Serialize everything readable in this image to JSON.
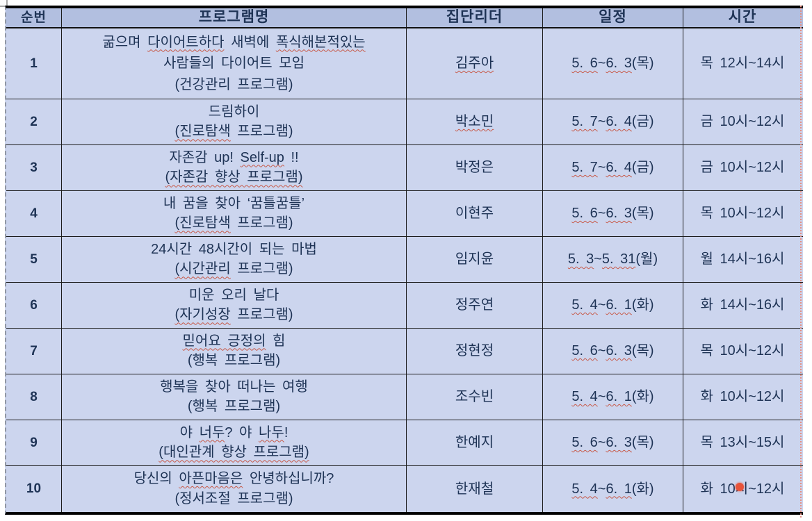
{
  "colors": {
    "header_bg": "#b2bfe0",
    "body_bg": "#ccd5ee",
    "text_color": "#1e3355",
    "misspell_color": "#c75a49",
    "pointer_color": "#e8533a",
    "margin_guide_color": "#e49084"
  },
  "table": {
    "columns": [
      {
        "id": "no",
        "label": "순번"
      },
      {
        "id": "program",
        "label": "프로그램명"
      },
      {
        "id": "leader",
        "label": "집단리더"
      },
      {
        "id": "schedule",
        "label": "일정"
      },
      {
        "id": "time",
        "label": "시간"
      }
    ],
    "rows": [
      {
        "no": "1",
        "program_lines": [
          [
            {
              "text": "굶으며 "
            },
            {
              "text": "다이어트하다",
              "misspell": true
            },
            {
              "text": " 새벽에 "
            },
            {
              "text": "폭식해본적있는",
              "misspell": true
            }
          ],
          [
            {
              "text": "사람들의 다이어트 모임"
            }
          ],
          [
            {
              "text": "(건강관리 프로그램)"
            }
          ]
        ],
        "leader": [
          {
            "text": "김주아",
            "misspell": true
          }
        ],
        "schedule": [
          {
            "text": "5. 6",
            "misspell": true
          },
          {
            "text": " ~ "
          },
          {
            "text": "6. 3",
            "misspell": true
          },
          {
            "text": " (목)"
          }
        ],
        "time": "목 12시~14시"
      },
      {
        "no": "2",
        "program_lines": [
          [
            {
              "text": "드림하이"
            }
          ],
          [
            {
              "text": "(진로탐색",
              "misspell": true
            },
            {
              "text": " 프로그램)"
            }
          ]
        ],
        "leader": [
          {
            "text": "박소민",
            "misspell": true
          }
        ],
        "schedule": [
          {
            "text": "5. 7",
            "misspell": true
          },
          {
            "text": " ~ "
          },
          {
            "text": "6. 4",
            "misspell": true
          },
          {
            "text": " (금)"
          }
        ],
        "time": "금 10시~12시"
      },
      {
        "no": "3",
        "program_lines": [
          [
            {
              "text": "자존감 up! "
            },
            {
              "text": "Self-up",
              "misspell": true
            },
            {
              "text": " !!"
            }
          ],
          [
            {
              "text": "(자존감 향상 프로그램)",
              "misspell": true
            }
          ]
        ],
        "leader": [
          {
            "text": "박정은"
          }
        ],
        "schedule": [
          {
            "text": "5. 7",
            "misspell": true
          },
          {
            "text": " ~ "
          },
          {
            "text": "6. 4",
            "misspell": true
          },
          {
            "text": " (금)"
          }
        ],
        "time": "금 10시~12시"
      },
      {
        "no": "4",
        "program_lines": [
          [
            {
              "text": "내 꿈을 찾아 ‘꿈틀꿈틀’"
            }
          ],
          [
            {
              "text": "(진로탐색",
              "misspell": true
            },
            {
              "text": " 프로그램)"
            }
          ]
        ],
        "leader": [
          {
            "text": "이현주"
          }
        ],
        "schedule": [
          {
            "text": "5. 6",
            "misspell": true
          },
          {
            "text": " ~ "
          },
          {
            "text": "6. 3",
            "misspell": true
          },
          {
            "text": " (목)"
          }
        ],
        "time": "목 10시~12시"
      },
      {
        "no": "5",
        "program_lines": [
          [
            {
              "text": "24시간 48시간이 되는 마법"
            }
          ],
          [
            {
              "text": "(시간관리",
              "misspell": true
            },
            {
              "text": " 프로그램)"
            }
          ]
        ],
        "leader": [
          {
            "text": "임지윤"
          }
        ],
        "schedule": [
          {
            "text": "5. 3",
            "misspell": true
          },
          {
            "text": " ~ "
          },
          {
            "text": "5. 31",
            "misspell": true
          },
          {
            "text": " (월)"
          }
        ],
        "time": "월 14시~16시"
      },
      {
        "no": "6",
        "program_lines": [
          [
            {
              "text": "미운 오리 날다"
            }
          ],
          [
            {
              "text": "(자기성장",
              "misspell": true
            },
            {
              "text": " 프로그램)"
            }
          ]
        ],
        "leader": [
          {
            "text": "정주연"
          }
        ],
        "schedule": [
          {
            "text": "5. 4",
            "misspell": true
          },
          {
            "text": " ~ "
          },
          {
            "text": "6. 1",
            "misspell": true
          },
          {
            "text": " (화)"
          }
        ],
        "time": "화 14시~16시"
      },
      {
        "no": "7",
        "program_lines": [
          [
            {
              "text": "믿어요 긍정의",
              "misspell": true
            },
            {
              "text": " 힘"
            }
          ],
          [
            {
              "text": "(행복 프로그램)"
            }
          ]
        ],
        "leader": [
          {
            "text": "정현정"
          }
        ],
        "schedule": [
          {
            "text": "5. 6",
            "misspell": true
          },
          {
            "text": " ~ "
          },
          {
            "text": "6. 3",
            "misspell": true
          },
          {
            "text": " (목)"
          }
        ],
        "time": "목 10시~12시"
      },
      {
        "no": "8",
        "program_lines": [
          [
            {
              "text": "행복을 찾아 떠나는 여행"
            }
          ],
          [
            {
              "text": "(행복 프로그램)"
            }
          ]
        ],
        "leader": [
          {
            "text": "조수빈"
          }
        ],
        "schedule": [
          {
            "text": "5. 4",
            "misspell": true
          },
          {
            "text": " ~ "
          },
          {
            "text": "6. 1",
            "misspell": true
          },
          {
            "text": " (화)"
          }
        ],
        "time": "화 10시~12시"
      },
      {
        "no": "9",
        "program_lines": [
          [
            {
              "text": "야 "
            },
            {
              "text": "너두",
              "misspell": true
            },
            {
              "text": "? 야 "
            },
            {
              "text": "나두",
              "misspell": true
            },
            {
              "text": "!"
            }
          ],
          [
            {
              "text": "(대인관계 향상 프로그램)",
              "misspell": true
            }
          ]
        ],
        "leader": [
          {
            "text": "한예지"
          }
        ],
        "schedule": [
          {
            "text": "5. 6",
            "misspell": true
          },
          {
            "text": " ~ "
          },
          {
            "text": "6. 3",
            "misspell": true
          },
          {
            "text": " (목)"
          }
        ],
        "time": "목 13시~15시"
      },
      {
        "no": "10",
        "program_lines": [
          [
            {
              "text": "당신의 "
            },
            {
              "text": "아픈마음은",
              "misspell": true
            },
            {
              "text": " 안녕하십니까?"
            }
          ],
          [
            {
              "text": "(정서조절 프로그램)"
            }
          ]
        ],
        "leader": [
          {
            "text": "한재철"
          }
        ],
        "schedule": [
          {
            "text": "5. 4",
            "misspell": true
          },
          {
            "text": " ~ "
          },
          {
            "text": "6. 1",
            "misspell": true
          },
          {
            "text": " (화)"
          }
        ],
        "time": "화 10시~12시"
      }
    ]
  }
}
